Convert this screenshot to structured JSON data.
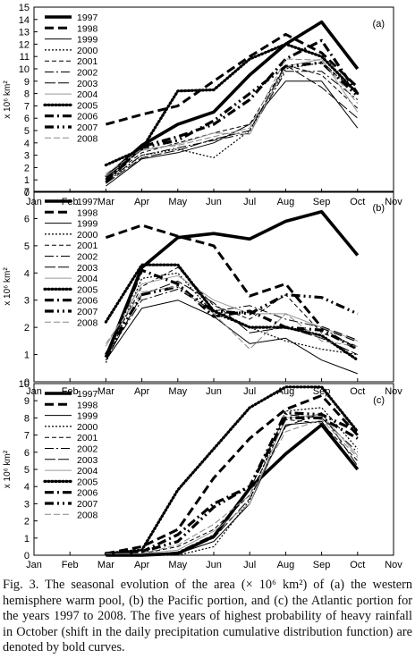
{
  "caption": "Fig. 3. The seasonal evolution of the area (× 10⁶ km²) of (a) the western hemisphere warm pool, (b) the Pacific portion, and (c) the Atlantic portion for the years 1997 to 2008. The five years of highest probability of heavy rainfall in October (shift in the daily precipitation cumulative distribution function) are denoted by bold curves.",
  "chart_data": [
    {
      "type": "line",
      "panel_label": "(a)",
      "ylabel": "x 10⁶ km²",
      "ylim": [
        0,
        15
      ],
      "yticks": [
        "0",
        "1",
        "2",
        "3",
        "4",
        "5",
        "6",
        "7",
        "8",
        "9",
        "10",
        "11",
        "12",
        "13",
        "14",
        "15"
      ],
      "categories": [
        "Jan",
        "Feb",
        "Mar",
        "Apr",
        "May",
        "Jun",
        "Jul",
        "Aug",
        "Sep",
        "Oct",
        "Nov"
      ],
      "legend_position": "top-left",
      "series": [
        {
          "name": "1997",
          "x": [
            "Mar",
            "Apr",
            "May",
            "Jun",
            "Jul",
            "Aug",
            "Sep",
            "Oct"
          ],
          "values": [
            1.2,
            3.8,
            5.5,
            6.5,
            9.5,
            12.0,
            13.8,
            10.0
          ]
        },
        {
          "name": "1998",
          "x": [
            "Mar",
            "Apr",
            "May",
            "Jun",
            "Jul",
            "Aug",
            "Sep",
            "Oct"
          ],
          "values": [
            5.5,
            6.3,
            7.0,
            9.0,
            11.0,
            12.8,
            11.3,
            8.5
          ]
        },
        {
          "name": "1999",
          "x": [
            "Mar",
            "Apr",
            "May",
            "Jun",
            "Jul",
            "Aug",
            "Sep",
            "Oct"
          ],
          "values": [
            0.5,
            2.7,
            3.2,
            4.0,
            5.5,
            9.0,
            9.0,
            5.2
          ]
        },
        {
          "name": "2000",
          "x": [
            "Mar",
            "Apr",
            "May",
            "Jun",
            "Jul",
            "Aug",
            "Sep",
            "Oct"
          ],
          "values": [
            0.8,
            3.0,
            3.5,
            2.8,
            5.0,
            10.0,
            10.5,
            8.0
          ]
        },
        {
          "name": "2001",
          "x": [
            "Mar",
            "Apr",
            "May",
            "Jun",
            "Jul",
            "Aug",
            "Sep",
            "Oct"
          ],
          "values": [
            1.0,
            3.2,
            4.0,
            4.8,
            5.5,
            10.3,
            9.5,
            6.8
          ]
        },
        {
          "name": "2002",
          "x": [
            "Mar",
            "Apr",
            "May",
            "Jun",
            "Jul",
            "Aug",
            "Sep",
            "Oct"
          ],
          "values": [
            0.9,
            3.0,
            3.6,
            4.2,
            4.8,
            9.8,
            9.8,
            7.5
          ]
        },
        {
          "name": "2003",
          "x": [
            "Mar",
            "Apr",
            "May",
            "Jun",
            "Jul",
            "Aug",
            "Sep",
            "Oct"
          ],
          "values": [
            0.7,
            2.8,
            3.4,
            4.3,
            5.0,
            10.3,
            8.5,
            6.0
          ]
        },
        {
          "name": "2004",
          "x": [
            "Mar",
            "Apr",
            "May",
            "Jun",
            "Jul",
            "Aug",
            "Sep",
            "Oct"
          ],
          "values": [
            1.3,
            3.4,
            3.9,
            4.8,
            4.7,
            10.2,
            10.8,
            6.5
          ]
        },
        {
          "name": "2005",
          "x": [
            "Mar",
            "Apr",
            "May",
            "Jun",
            "Jul",
            "Aug",
            "Sep",
            "Oct"
          ],
          "values": [
            2.2,
            3.5,
            8.2,
            8.3,
            10.8,
            12.0,
            11.0,
            8.0
          ]
        },
        {
          "name": "2006",
          "x": [
            "Mar",
            "Apr",
            "May",
            "Jun",
            "Jul",
            "Aug",
            "Sep",
            "Oct"
          ],
          "values": [
            0.8,
            3.7,
            4.5,
            5.5,
            7.5,
            10.8,
            12.3,
            8.0
          ]
        },
        {
          "name": "2007",
          "x": [
            "Mar",
            "Apr",
            "May",
            "Jun",
            "Jul",
            "Aug",
            "Sep",
            "Oct"
          ],
          "values": [
            1.0,
            3.6,
            4.2,
            5.8,
            8.0,
            10.2,
            10.5,
            7.8
          ]
        },
        {
          "name": "2008",
          "x": [
            "Mar",
            "Apr",
            "May",
            "Jun",
            "Jul",
            "Aug",
            "Sep",
            "Oct"
          ],
          "values": [
            1.5,
            3.5,
            3.8,
            4.5,
            5.2,
            10.8,
            10.7,
            7.2
          ]
        }
      ]
    },
    {
      "type": "line",
      "panel_label": "(b)",
      "ylabel": "x 10⁶ km²",
      "ylim": [
        0,
        7
      ],
      "yticks": [
        "0",
        "1",
        "2",
        "3",
        "4",
        "5",
        "6",
        "7"
      ],
      "categories": [
        "Jan",
        "Feb",
        "Mar",
        "Apr",
        "May",
        "Jun",
        "Jul",
        "Aug",
        "Sep",
        "Oct",
        "Nov"
      ],
      "legend_position": "top-left",
      "series": [
        {
          "name": "1997",
          "x": [
            "Mar",
            "Apr",
            "May",
            "Jun",
            "Jul",
            "Aug",
            "Sep",
            "Oct"
          ],
          "values": [
            0.9,
            4.2,
            5.3,
            5.45,
            5.25,
            5.9,
            6.25,
            4.65
          ]
        },
        {
          "name": "1998",
          "x": [
            "Mar",
            "Apr",
            "May",
            "Jun",
            "Jul",
            "Aug",
            "Sep",
            "Oct"
          ],
          "values": [
            5.3,
            5.75,
            5.35,
            5.0,
            3.15,
            3.6,
            2.0,
            1.5
          ]
        },
        {
          "name": "1999",
          "x": [
            "Mar",
            "Apr",
            "May",
            "Jun",
            "Jul",
            "Aug",
            "Sep",
            "Oct"
          ],
          "values": [
            0.8,
            2.7,
            3.0,
            2.4,
            1.4,
            1.6,
            0.8,
            0.3
          ]
        },
        {
          "name": "2000",
          "x": [
            "Mar",
            "Apr",
            "May",
            "Jun",
            "Jul",
            "Aug",
            "Sep",
            "Oct"
          ],
          "values": [
            0.7,
            3.8,
            4.0,
            2.5,
            2.0,
            1.5,
            1.2,
            1.0
          ]
        },
        {
          "name": "2001",
          "x": [
            "Mar",
            "Apr",
            "May",
            "Jun",
            "Jul",
            "Aug",
            "Sep",
            "Oct"
          ],
          "values": [
            1.0,
            3.5,
            4.2,
            2.8,
            2.3,
            3.2,
            1.8,
            1.3
          ]
        },
        {
          "name": "2002",
          "x": [
            "Mar",
            "Apr",
            "May",
            "Jun",
            "Jul",
            "Aug",
            "Sep",
            "Oct"
          ],
          "values": [
            0.9,
            3.0,
            3.4,
            2.6,
            2.8,
            2.3,
            2.0,
            1.2
          ]
        },
        {
          "name": "2003",
          "x": [
            "Mar",
            "Apr",
            "May",
            "Jun",
            "Jul",
            "Aug",
            "Sep",
            "Oct"
          ],
          "values": [
            0.8,
            3.2,
            3.7,
            2.9,
            1.8,
            2.0,
            1.6,
            1.0
          ]
        },
        {
          "name": "2004",
          "x": [
            "Mar",
            "Apr",
            "May",
            "Jun",
            "Jul",
            "Aug",
            "Sep",
            "Oct"
          ],
          "values": [
            1.3,
            3.6,
            3.9,
            3.0,
            2.5,
            2.5,
            2.0,
            1.5
          ]
        },
        {
          "name": "2005",
          "x": [
            "Mar",
            "Apr",
            "May",
            "Jun",
            "Jul",
            "Aug",
            "Sep",
            "Oct"
          ],
          "values": [
            2.2,
            4.3,
            4.3,
            2.6,
            2.0,
            2.0,
            1.7,
            0.8
          ]
        },
        {
          "name": "2006",
          "x": [
            "Mar",
            "Apr",
            "May",
            "Jun",
            "Jul",
            "Aug",
            "Sep",
            "Oct"
          ],
          "values": [
            0.9,
            4.1,
            3.6,
            2.4,
            2.6,
            2.0,
            1.9,
            1.2
          ]
        },
        {
          "name": "2007",
          "x": [
            "Mar",
            "Apr",
            "May",
            "Jun",
            "Jul",
            "Aug",
            "Sep",
            "Oct"
          ],
          "values": [
            1.0,
            3.2,
            3.5,
            2.6,
            2.5,
            3.2,
            3.1,
            2.5
          ]
        },
        {
          "name": "2008",
          "x": [
            "Mar",
            "Apr",
            "May",
            "Jun",
            "Jul",
            "Aug",
            "Sep",
            "Oct"
          ],
          "values": [
            1.4,
            3.3,
            3.5,
            2.5,
            1.2,
            2.5,
            1.5,
            1.3
          ]
        }
      ]
    },
    {
      "type": "line",
      "panel_label": "(c)",
      "ylabel": "x 10⁶ km²",
      "ylim": [
        0,
        10
      ],
      "yticks": [
        "0",
        "1",
        "2",
        "3",
        "4",
        "5",
        "6",
        "7",
        "8",
        "9",
        "10"
      ],
      "categories": [
        "Jan",
        "Feb",
        "Mar",
        "Apr",
        "May",
        "Jun",
        "Jul",
        "Aug",
        "Sep",
        "Oct",
        "Nov"
      ],
      "legend_position": "top-left",
      "series": [
        {
          "name": "1997",
          "x": [
            "Mar",
            "Apr",
            "May",
            "Jun",
            "Jul",
            "Aug",
            "Sep",
            "Oct"
          ],
          "values": [
            0.0,
            0.0,
            0.1,
            1.1,
            3.9,
            5.9,
            7.6,
            5.0
          ]
        },
        {
          "name": "1998",
          "x": [
            "Mar",
            "Apr",
            "May",
            "Jun",
            "Jul",
            "Aug",
            "Sep",
            "Oct"
          ],
          "values": [
            0.1,
            0.5,
            1.5,
            4.5,
            6.8,
            8.5,
            9.3,
            7.0
          ]
        },
        {
          "name": "1999",
          "x": [
            "Mar",
            "Apr",
            "May",
            "Jun",
            "Jul",
            "Aug",
            "Sep",
            "Oct"
          ],
          "values": [
            0.0,
            0.0,
            0.1,
            0.8,
            3.0,
            7.6,
            7.8,
            5.0
          ]
        },
        {
          "name": "2000",
          "x": [
            "Mar",
            "Apr",
            "May",
            "Jun",
            "Jul",
            "Aug",
            "Sep",
            "Oct"
          ],
          "values": [
            0.0,
            0.0,
            0.0,
            0.5,
            3.2,
            8.4,
            8.6,
            6.2
          ]
        },
        {
          "name": "2001",
          "x": [
            "Mar",
            "Apr",
            "May",
            "Jun",
            "Jul",
            "Aug",
            "Sep",
            "Oct"
          ],
          "values": [
            0.1,
            0.1,
            0.5,
            1.5,
            3.5,
            7.9,
            7.7,
            5.5
          ]
        },
        {
          "name": "2002",
          "x": [
            "Mar",
            "Apr",
            "May",
            "Jun",
            "Jul",
            "Aug",
            "Sep",
            "Oct"
          ],
          "values": [
            0.0,
            0.0,
            0.2,
            1.2,
            3.8,
            8.2,
            8.0,
            6.0
          ]
        },
        {
          "name": "2003",
          "x": [
            "Mar",
            "Apr",
            "May",
            "Jun",
            "Jul",
            "Aug",
            "Sep",
            "Oct"
          ],
          "values": [
            0.0,
            0.0,
            0.1,
            1.0,
            3.3,
            7.5,
            8.3,
            5.2
          ]
        },
        {
          "name": "2004",
          "x": [
            "Mar",
            "Apr",
            "May",
            "Jun",
            "Jul",
            "Aug",
            "Sep",
            "Oct"
          ],
          "values": [
            0.1,
            0.1,
            0.3,
            1.4,
            3.0,
            8.0,
            8.2,
            5.8
          ]
        },
        {
          "name": "2005",
          "x": [
            "Mar",
            "Apr",
            "May",
            "Jun",
            "Jul",
            "Aug",
            "Sep",
            "Oct"
          ],
          "values": [
            0.1,
            0.3,
            3.8,
            6.2,
            8.6,
            9.8,
            9.8,
            7.2
          ]
        },
        {
          "name": "2006",
          "x": [
            "Mar",
            "Apr",
            "May",
            "Jun",
            "Jul",
            "Aug",
            "Sep",
            "Oct"
          ],
          "values": [
            0.1,
            0.2,
            1.2,
            3.0,
            4.0,
            8.0,
            8.0,
            6.8
          ]
        },
        {
          "name": "2007",
          "x": [
            "Mar",
            "Apr",
            "May",
            "Jun",
            "Jul",
            "Aug",
            "Sep",
            "Oct"
          ],
          "values": [
            0.1,
            0.2,
            0.8,
            2.8,
            4.0,
            8.3,
            8.2,
            7.2
          ]
        },
        {
          "name": "2008",
          "x": [
            "Mar",
            "Apr",
            "May",
            "Jun",
            "Jul",
            "Aug",
            "Sep",
            "Oct"
          ],
          "values": [
            0.1,
            0.1,
            0.6,
            1.8,
            3.5,
            7.2,
            7.9,
            5.7
          ]
        }
      ]
    }
  ]
}
